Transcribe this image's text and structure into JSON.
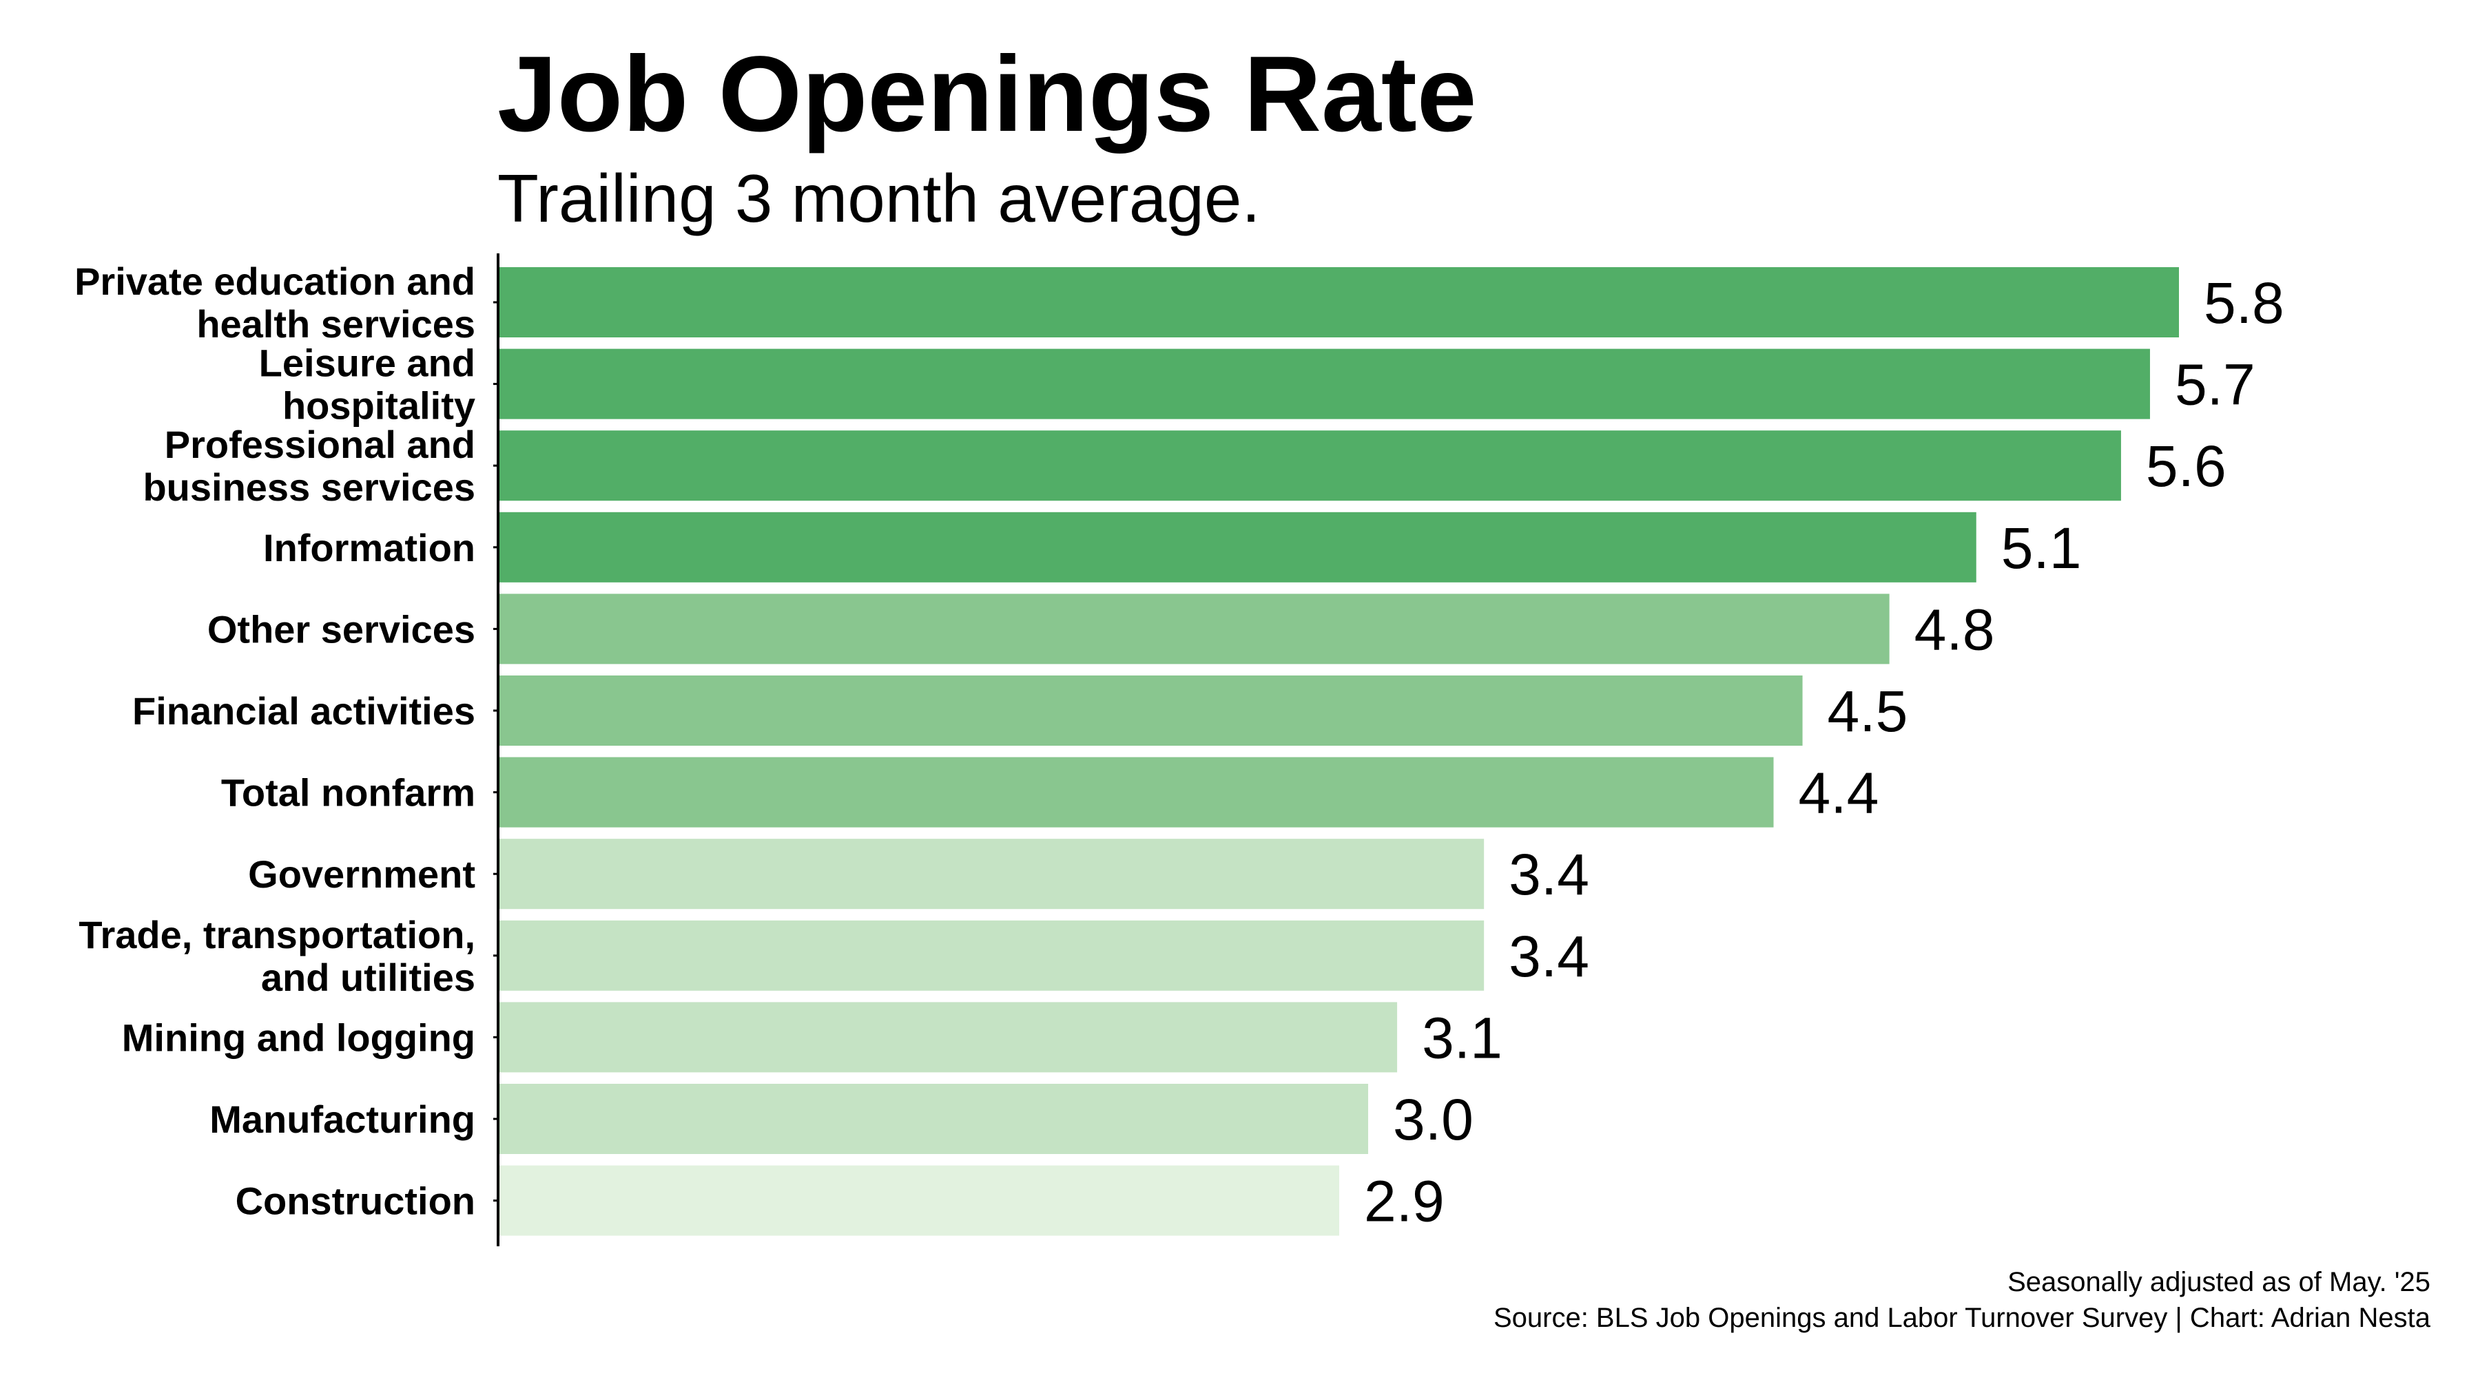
{
  "chart_data": {
    "type": "bar",
    "orientation": "horizontal",
    "title": "Job Openings Rate",
    "subtitle": "Trailing 3 month average.",
    "categories": [
      "Private education and health services",
      "Leisure and hospitality",
      "Professional and business services",
      "Information",
      "Other services",
      "Financial activities",
      "Total nonfarm",
      "Government",
      "Trade, transportation, and utilities",
      "Mining and logging",
      "Manufacturing",
      "Construction"
    ],
    "category_lines": [
      [
        "Private education and",
        "health services"
      ],
      [
        "Leisure and",
        "hospitality"
      ],
      [
        "Professional and",
        "business services"
      ],
      [
        "Information"
      ],
      [
        "Other services"
      ],
      [
        "Financial activities"
      ],
      [
        "Total nonfarm"
      ],
      [
        "Government"
      ],
      [
        "Trade, transportation,",
        "and utilities"
      ],
      [
        "Mining and logging"
      ],
      [
        "Manufacturing"
      ],
      [
        "Construction"
      ]
    ],
    "values": [
      5.8,
      5.7,
      5.6,
      5.1,
      4.8,
      4.5,
      4.4,
      3.4,
      3.4,
      3.1,
      3.0,
      2.9
    ],
    "value_labels": [
      "5.8",
      "5.7",
      "5.6",
      "5.1",
      "4.8",
      "4.5",
      "4.4",
      "3.4",
      "3.4",
      "3.1",
      "3.0",
      "2.9"
    ],
    "bar_colors": [
      "#52ae67",
      "#52ae67",
      "#52ae67",
      "#52ae67",
      "#89c68f",
      "#89c68f",
      "#89c68f",
      "#c5e3c4",
      "#c5e3c4",
      "#c5e3c4",
      "#c5e3c4",
      "#e2f2df"
    ],
    "xlim": [
      0,
      5.8
    ],
    "grid": false,
    "legend": "none",
    "notes": [
      "Seasonally adjusted as of May. '25",
      "Source: BLS Job Openings and Labor Turnover Survey | Chart: Adrian Nesta"
    ]
  }
}
